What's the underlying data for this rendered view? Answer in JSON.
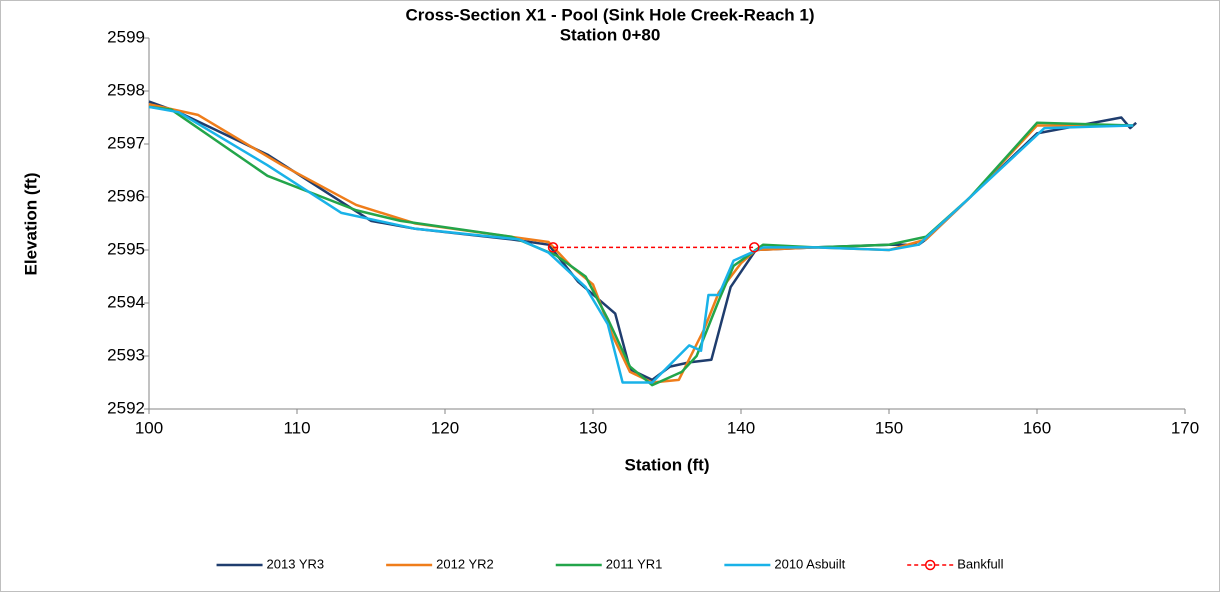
{
  "chart_data": {
    "type": "line",
    "title": "Cross-Section X1 - Pool (Sink Hole Creek-Reach 1)",
    "subtitle": "Station 0+80",
    "x_label": "Station (ft)",
    "y_label": "Elevation (ft)",
    "xlim": [
      100,
      170
    ],
    "xticks": [
      100,
      110,
      120,
      130,
      140,
      150,
      160,
      170
    ],
    "ylim": [
      2592,
      2599
    ],
    "yticks": [
      2592,
      2593,
      2594,
      2595,
      2596,
      2597,
      2598,
      2599
    ],
    "legend": "bottom",
    "series": [
      {
        "name": "2013 YR3",
        "color": "#1f3d6e",
        "x": [
          100,
          102,
          108,
          115,
          118,
          124.5,
          127,
          129,
          131.5,
          132.5,
          134,
          135.2,
          136.5,
          138,
          139.3,
          141,
          145,
          150,
          152,
          152.5,
          155.5,
          160,
          165.7,
          166.3,
          166.7
        ],
        "values": [
          2597.8,
          2597.6,
          2596.8,
          2595.55,
          2595.4,
          2595.2,
          2595.1,
          2594.4,
          2593.8,
          2592.75,
          2592.55,
          2592.8,
          2592.88,
          2592.93,
          2594.3,
          2595,
          2595.05,
          2595.1,
          2595.1,
          2595.2,
          2596,
          2597.2,
          2597.5,
          2597.3,
          2597.4
        ]
      },
      {
        "name": "2012 YR2",
        "color": "#ef7d1a",
        "x": [
          100,
          103.3,
          109,
          114,
          118,
          127,
          128.5,
          130,
          131.3,
          132.5,
          134,
          135.8,
          137.5,
          138.5,
          140,
          141,
          145,
          150,
          152.5,
          155.5,
          160,
          166.5
        ],
        "values": [
          2597.75,
          2597.55,
          2596.6,
          2595.85,
          2595.5,
          2595.15,
          2594.7,
          2594.35,
          2593.4,
          2592.7,
          2592.5,
          2592.55,
          2593.5,
          2594.2,
          2594.75,
          2595,
          2595.05,
          2595,
          2595.2,
          2596,
          2597.35,
          2597.35
        ]
      },
      {
        "name": "2011 YR1",
        "color": "#23a54a",
        "x": [
          100,
          101.5,
          108,
          114,
          117,
          124.5,
          127.5,
          129.5,
          131,
          132.5,
          134,
          136,
          137,
          138.5,
          139.5,
          141.5,
          145,
          150,
          152.5,
          155.5,
          160,
          166.5
        ],
        "values": [
          2597.7,
          2597.65,
          2596.4,
          2595.75,
          2595.55,
          2595.25,
          2594.9,
          2594.5,
          2593.7,
          2592.8,
          2592.45,
          2592.7,
          2593,
          2594.05,
          2594.7,
          2595.1,
          2595.05,
          2595.1,
          2595.25,
          2596,
          2597.4,
          2597.35
        ]
      },
      {
        "name": "2010 Asbuilt",
        "color": "#19b2e8",
        "x": [
          100,
          102,
          108,
          113,
          118,
          125,
          127,
          129.5,
          131,
          132,
          134,
          136.5,
          137.3,
          137.8,
          138.5,
          139.5,
          141.5,
          145,
          150,
          152,
          155.5,
          160.5,
          166.5
        ],
        "values": [
          2597.7,
          2597.6,
          2596.6,
          2595.7,
          2595.4,
          2595.2,
          2594.95,
          2594.3,
          2593.6,
          2592.5,
          2592.5,
          2593.2,
          2593.1,
          2594.15,
          2594.15,
          2594.8,
          2595.05,
          2595.05,
          2595,
          2595.1,
          2596,
          2597.3,
          2597.35
        ]
      },
      {
        "name": "Bankfull",
        "color": "#ff0000",
        "dashed": true,
        "markers": true,
        "x": [
          127.3,
          140.9
        ],
        "values": [
          2595.05,
          2595.05
        ]
      }
    ]
  }
}
